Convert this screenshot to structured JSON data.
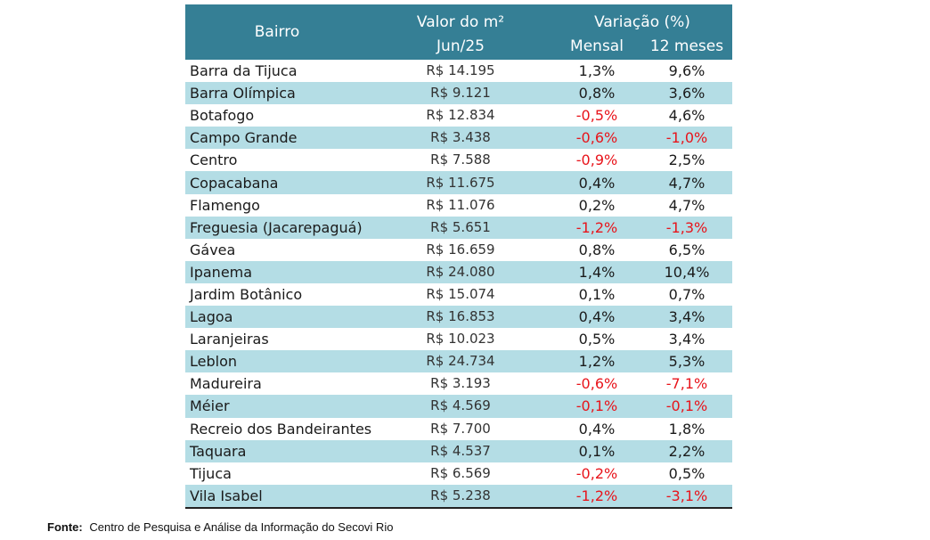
{
  "header": {
    "bairro": "Bairro",
    "valor_line1": "Valor do m²",
    "valor_line2": "Jun/25",
    "variacao": "Variação (%)",
    "mensal": "Mensal",
    "doze_meses": "12 meses"
  },
  "rows": [
    {
      "bairro": "Barra da Tijuca",
      "valor": "R$ 14.195",
      "mensal": "1,3%",
      "anual": "9,6%"
    },
    {
      "bairro": "Barra Olímpica",
      "valor": "R$ 9.121",
      "mensal": "0,8%",
      "anual": "3,6%"
    },
    {
      "bairro": "Botafogo",
      "valor": "R$ 12.834",
      "mensal": "-0,5%",
      "anual": "4,6%"
    },
    {
      "bairro": "Campo Grande",
      "valor": "R$ 3.438",
      "mensal": "-0,6%",
      "anual": "-1,0%"
    },
    {
      "bairro": "Centro",
      "valor": "R$ 7.588",
      "mensal": "-0,9%",
      "anual": "2,5%"
    },
    {
      "bairro": "Copacabana",
      "valor": "R$ 11.675",
      "mensal": "0,4%",
      "anual": "4,7%"
    },
    {
      "bairro": "Flamengo",
      "valor": "R$ 11.076",
      "mensal": "0,2%",
      "anual": "4,7%"
    },
    {
      "bairro": "Freguesia (Jacarepaguá)",
      "valor": "R$ 5.651",
      "mensal": "-1,2%",
      "anual": "-1,3%"
    },
    {
      "bairro": "Gávea",
      "valor": "R$ 16.659",
      "mensal": "0,8%",
      "anual": "6,5%"
    },
    {
      "bairro": "Ipanema",
      "valor": "R$ 24.080",
      "mensal": "1,4%",
      "anual": "10,4%"
    },
    {
      "bairro": "Jardim Botânico",
      "valor": "R$ 15.074",
      "mensal": "0,1%",
      "anual": "0,7%"
    },
    {
      "bairro": "Lagoa",
      "valor": "R$ 16.853",
      "mensal": "0,4%",
      "anual": "3,4%"
    },
    {
      "bairro": "Laranjeiras",
      "valor": "R$ 10.023",
      "mensal": "0,5%",
      "anual": "3,4%"
    },
    {
      "bairro": "Leblon",
      "valor": "R$ 24.734",
      "mensal": "1,2%",
      "anual": "5,3%"
    },
    {
      "bairro": "Madureira",
      "valor": "R$ 3.193",
      "mensal": "-0,6%",
      "anual": "-7,1%"
    },
    {
      "bairro": "Méier",
      "valor": "R$ 4.569",
      "mensal": "-0,1%",
      "anual": "-0,1%"
    },
    {
      "bairro": "Recreio dos Bandeirantes",
      "valor": "R$ 7.700",
      "mensal": "0,4%",
      "anual": "1,8%"
    },
    {
      "bairro": "Taquara",
      "valor": "R$ 4.537",
      "mensal": "0,1%",
      "anual": "2,2%"
    },
    {
      "bairro": "Tijuca",
      "valor": "R$ 6.569",
      "mensal": "-0,2%",
      "anual": "0,5%"
    },
    {
      "bairro": "Vila Isabel",
      "valor": "R$ 5.238",
      "mensal": "-1,2%",
      "anual": "-3,1%"
    }
  ],
  "colors": {
    "header_bg": "#357f95",
    "stripe": "#b4dde5",
    "negative": "#e8141b"
  },
  "source": {
    "label": "Fonte:",
    "text": "Centro de Pesquisa e Análise da Informação do Secovi Rio"
  }
}
